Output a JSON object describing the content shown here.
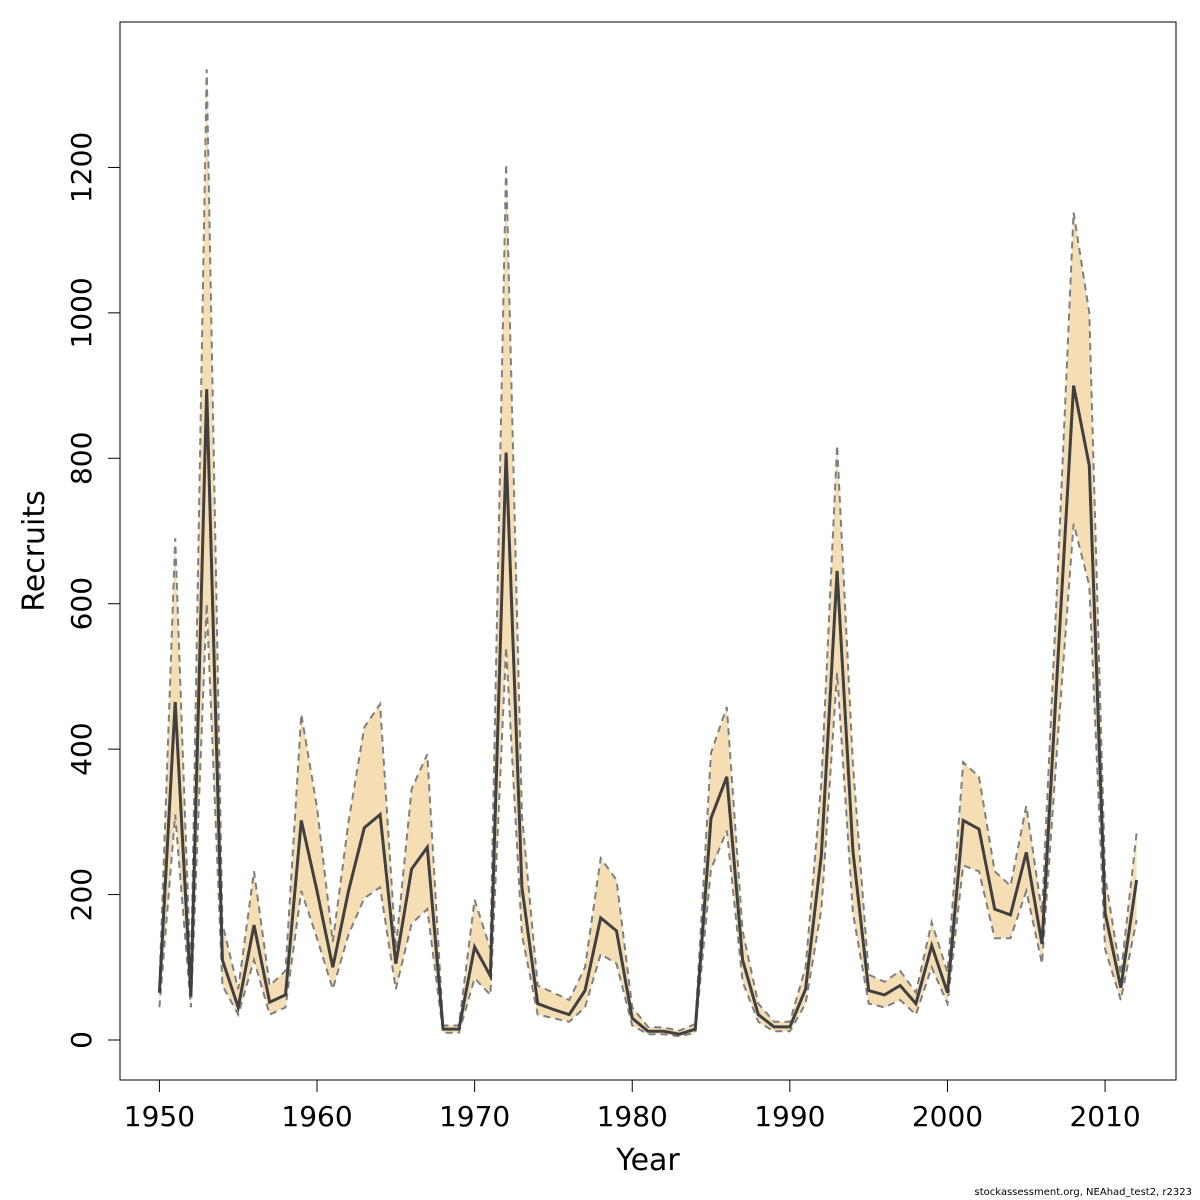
{
  "chart_data": {
    "type": "line",
    "xlabel": "Year",
    "ylabel": "Recruits",
    "xlim": [
      1947.5,
      2014.5
    ],
    "ylim": [
      -55,
      1400
    ],
    "x_ticks": [
      1950,
      1960,
      1970,
      1980,
      1990,
      2000,
      2010
    ],
    "y_ticks": [
      0,
      200,
      400,
      600,
      800,
      1000,
      1200
    ],
    "grid": false,
    "colors": {
      "band": "#f5deb3",
      "line": "#404040",
      "bounds": "#7f7f7f"
    },
    "x": [
      1950,
      1951,
      1952,
      1953,
      1954,
      1955,
      1956,
      1957,
      1958,
      1959,
      1960,
      1961,
      1962,
      1963,
      1964,
      1965,
      1966,
      1967,
      1968,
      1969,
      1970,
      1971,
      1972,
      1973,
      1974,
      1975,
      1976,
      1977,
      1978,
      1979,
      1980,
      1981,
      1982,
      1983,
      1984,
      1985,
      1986,
      1987,
      1988,
      1989,
      1990,
      1991,
      1992,
      1993,
      1994,
      1995,
      1996,
      1997,
      1998,
      1999,
      2000,
      2001,
      2002,
      2003,
      2004,
      2005,
      2006,
      2007,
      2008,
      2009,
      2010,
      2011,
      2012
    ],
    "series": [
      {
        "role": "estimate",
        "values": [
          65,
          465,
          60,
          895,
          110,
          45,
          158,
          52,
          62,
          302,
          205,
          100,
          205,
          292,
          310,
          105,
          235,
          265,
          15,
          15,
          128,
          88,
          808,
          210,
          50,
          42,
          35,
          68,
          168,
          150,
          30,
          12,
          12,
          8,
          15,
          305,
          362,
          110,
          35,
          18,
          18,
          70,
          255,
          645,
          260,
          68,
          62,
          75,
          50,
          130,
          65,
          302,
          290,
          180,
          172,
          258,
          132,
          520,
          900,
          790,
          175,
          72,
          220
        ]
      },
      {
        "role": "upper",
        "values": [
          75,
          690,
          80,
          1335,
          160,
          70,
          232,
          75,
          95,
          448,
          320,
          135,
          300,
          430,
          462,
          125,
          345,
          393,
          20,
          20,
          193,
          125,
          1205,
          310,
          75,
          65,
          55,
          100,
          250,
          220,
          45,
          18,
          17,
          13,
          22,
          395,
          458,
          150,
          50,
          25,
          25,
          100,
          355,
          818,
          380,
          90,
          80,
          95,
          65,
          162,
          93,
          382,
          362,
          232,
          212,
          322,
          175,
          645,
          1138,
          1000,
          225,
          90,
          285
        ]
      },
      {
        "role": "lower",
        "values": [
          45,
          310,
          45,
          600,
          75,
          35,
          110,
          35,
          45,
          205,
          140,
          70,
          145,
          195,
          210,
          70,
          160,
          180,
          10,
          10,
          85,
          62,
          540,
          145,
          35,
          30,
          25,
          45,
          118,
          105,
          20,
          8,
          8,
          5,
          10,
          235,
          288,
          80,
          25,
          12,
          12,
          50,
          180,
          505,
          175,
          50,
          45,
          55,
          35,
          100,
          50,
          240,
          232,
          140,
          140,
          205,
          105,
          415,
          710,
          625,
          125,
          55,
          165
        ]
      }
    ]
  },
  "footer": "stockassessment.org, NEAhad_test2, r2323"
}
